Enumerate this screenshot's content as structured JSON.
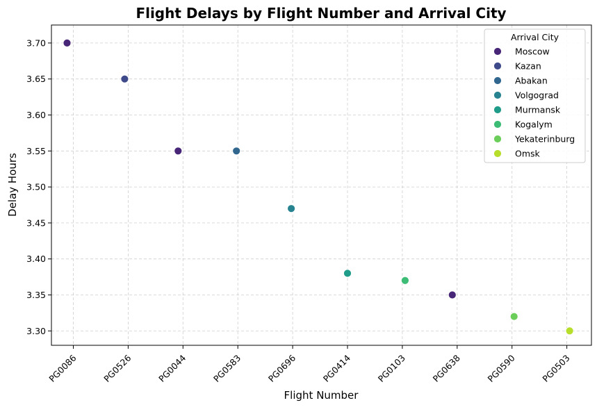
{
  "chart_data": {
    "type": "scatter",
    "title": "Flight Delays by Flight Number and Arrival City",
    "xlabel": "Flight Number",
    "ylabel": "Delay Hours",
    "categories": [
      "PG0086",
      "PG0526",
      "PG0044",
      "PG0583",
      "PG0696",
      "PG0414",
      "PG0103",
      "PG0638",
      "PG0590",
      "PG0503"
    ],
    "ylim": [
      3.28,
      3.725
    ],
    "yticks": [
      "3.30",
      "3.35",
      "3.40",
      "3.45",
      "3.50",
      "3.55",
      "3.60",
      "3.65",
      "3.70"
    ],
    "grid": true,
    "legend": {
      "title": "Arrival City",
      "placement": "top-right",
      "entries": [
        {
          "name": "Moscow",
          "color": "#482677"
        },
        {
          "name": "Kazan",
          "color": "#3f4a8a"
        },
        {
          "name": "Abakan",
          "color": "#31678e"
        },
        {
          "name": "Volgograd",
          "color": "#26838f"
        },
        {
          "name": "Murmansk",
          "color": "#1f9d8a"
        },
        {
          "name": "Kogalym",
          "color": "#3cbc75"
        },
        {
          "name": "Yekaterinburg",
          "color": "#6cce5a"
        },
        {
          "name": "Omsk",
          "color": "#b6de2b"
        }
      ]
    },
    "points": [
      {
        "flight": "PG0086",
        "city": "Moscow",
        "delay": 3.7
      },
      {
        "flight": "PG0526",
        "city": "Kazan",
        "delay": 3.65
      },
      {
        "flight": "PG0044",
        "city": "Moscow",
        "delay": 3.55
      },
      {
        "flight": "PG0583",
        "city": "Abakan",
        "delay": 3.55
      },
      {
        "flight": "PG0696",
        "city": "Volgograd",
        "delay": 3.47
      },
      {
        "flight": "PG0414",
        "city": "Murmansk",
        "delay": 3.38
      },
      {
        "flight": "PG0103",
        "city": "Kogalym",
        "delay": 3.37
      },
      {
        "flight": "PG0638",
        "city": "Moscow",
        "delay": 3.35
      },
      {
        "flight": "PG0590",
        "city": "Yekaterinburg",
        "delay": 3.32
      },
      {
        "flight": "PG0503",
        "city": "Omsk",
        "delay": 3.3
      }
    ]
  }
}
